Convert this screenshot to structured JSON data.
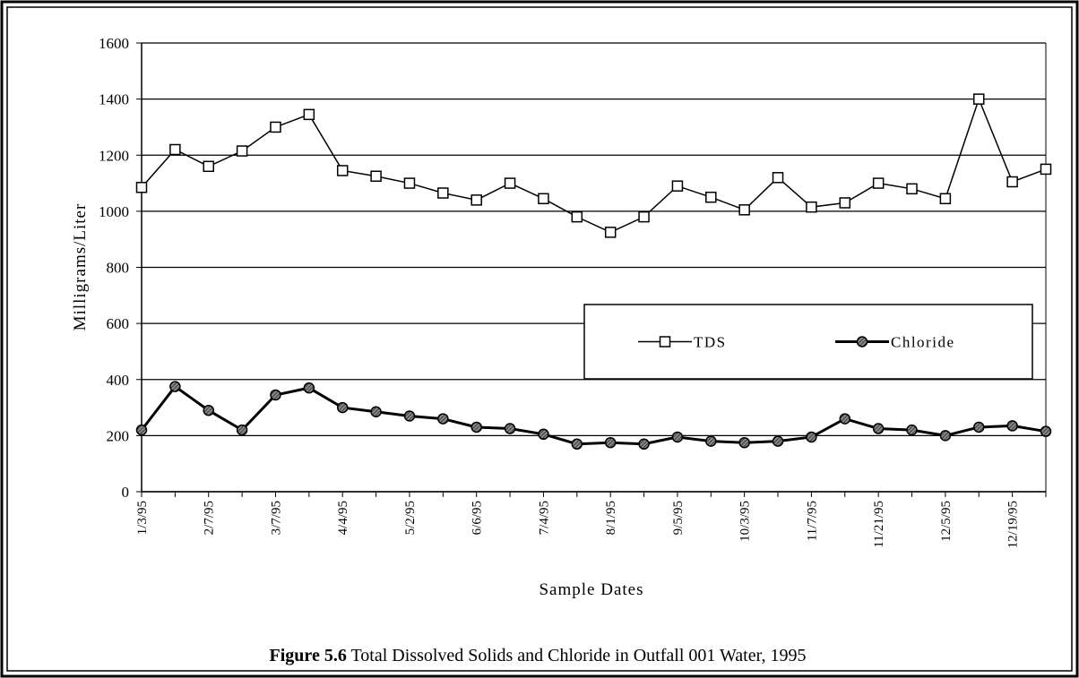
{
  "chart_data": {
    "type": "line",
    "caption_label": "Figure 5.6",
    "caption": "Total Dissolved Solids and Chloride in Outfall 001 Water, 1995",
    "y_label": "Milligrams/Liter",
    "x_label": "Sample Dates",
    "categories": [
      "1/3/95",
      null,
      "2/7/95",
      null,
      "3/7/95",
      null,
      "4/4/95",
      null,
      "5/2/95",
      null,
      "6/6/95",
      null,
      "7/4/95",
      null,
      "8/1/95",
      null,
      "9/5/95",
      null,
      "10/3/95",
      null,
      "11/7/95",
      null,
      "11/21/95",
      null,
      "12/5/95",
      null,
      "12/19/95",
      null
    ],
    "series": [
      {
        "name": "TDS",
        "color": "#000000",
        "marker": "square",
        "values": [
          1085,
          1220,
          1160,
          1215,
          1300,
          1345,
          1145,
          1125,
          1100,
          1065,
          1040,
          1100,
          1045,
          980,
          925,
          980,
          1090,
          1050,
          1005,
          1120,
          1015,
          1030,
          1100,
          1080,
          1045,
          1400,
          1105,
          1150
        ]
      },
      {
        "name": "Chloride",
        "color": "#000000",
        "marker": "circle",
        "values": [
          220,
          375,
          290,
          220,
          345,
          370,
          300,
          285,
          270,
          260,
          230,
          225,
          205,
          170,
          175,
          170,
          195,
          180,
          175,
          180,
          195,
          260,
          225,
          220,
          200,
          230,
          235,
          215
        ]
      }
    ],
    "ylim": [
      0,
      1600
    ],
    "yticks": [
      0,
      200,
      400,
      600,
      800,
      1000,
      1200,
      1400,
      1600
    ],
    "grid": true,
    "legend": "center-right"
  }
}
